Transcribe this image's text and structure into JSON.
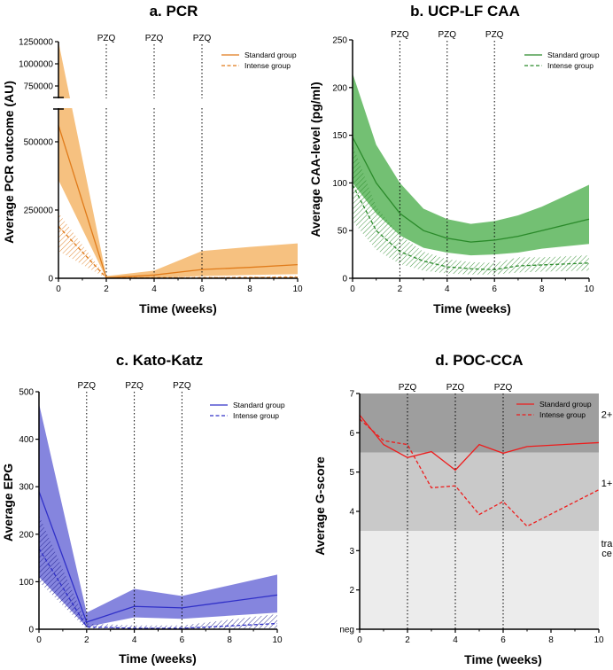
{
  "figure": {
    "colors": {
      "pcr": "#e07b1a",
      "pcr_fill": "#f5b66a",
      "caa": "#2a8a2a",
      "caa_fill": "#5ab55a",
      "kk": "#3030c8",
      "kk_fill": "#7070d8",
      "poc": "#ee1c1c",
      "axis": "#000000"
    }
  },
  "chart_data": [
    {
      "id": "pcr",
      "type": "line",
      "title": "a. PCR",
      "xlabel": "Time (weeks)",
      "ylabel": "Average PCR outcome (AU)",
      "xlim": [
        0,
        10
      ],
      "xticks": [
        "0",
        "2",
        "4",
        "6",
        "8",
        "10"
      ],
      "ylim_lower": [
        0,
        620000
      ],
      "ylim_upper": [
        620000,
        1250000
      ],
      "axis_break": true,
      "yticks": [
        {
          "v": 0,
          "label": "0"
        },
        {
          "v": 250000,
          "label": "250000"
        },
        {
          "v": 500000,
          "label": "500000"
        },
        {
          "v": 750000,
          "label": "750000"
        },
        {
          "v": 1000000,
          "label": "1000000"
        },
        {
          "v": 1250000,
          "label": "1250000"
        }
      ],
      "annotations": [
        {
          "x": 2,
          "label": "PZQ"
        },
        {
          "x": 4,
          "label": "PZQ"
        },
        {
          "x": 6,
          "label": "PZQ"
        }
      ],
      "legend": {
        "position": "top-right",
        "entries": [
          "Standard group",
          "Intense group"
        ]
      },
      "series": [
        {
          "name": "Standard group",
          "style": "solid",
          "x": [
            0,
            2,
            4,
            6,
            8,
            10
          ],
          "y": [
            560000,
            2000,
            12000,
            32000,
            40000,
            50000
          ],
          "lower": [
            360000,
            0,
            2000,
            8000,
            12000,
            15000
          ],
          "upper": [
            1250000,
            8000,
            28000,
            100000,
            115000,
            128000
          ]
        },
        {
          "name": "Intense group",
          "style": "dashed",
          "x": [
            0,
            2,
            4,
            6,
            8,
            10
          ],
          "y": [
            190000,
            2000,
            2000,
            2000,
            3000,
            4000
          ],
          "lower": [
            100000,
            0,
            0,
            0,
            0,
            0
          ],
          "upper": [
            240000,
            5000,
            5000,
            6000,
            7000,
            9000
          ]
        }
      ]
    },
    {
      "id": "caa",
      "type": "line",
      "title": "b. UCP-LF CAA",
      "xlabel": "Time (weeks)",
      "ylabel": "Average CAA-level (pg/ml)",
      "xlim": [
        0,
        10
      ],
      "ylim": [
        0,
        250
      ],
      "xticks": [
        "0",
        "2",
        "4",
        "6",
        "8",
        "10"
      ],
      "yticks": [
        "0",
        "50",
        "100",
        "150",
        "200",
        "250"
      ],
      "annotations": [
        {
          "x": 2,
          "label": "PZQ"
        },
        {
          "x": 4,
          "label": "PZQ"
        },
        {
          "x": 6,
          "label": "PZQ"
        }
      ],
      "legend": {
        "position": "top-right",
        "entries": [
          "Standard group",
          "Intense group"
        ]
      },
      "series": [
        {
          "name": "Standard group",
          "style": "solid",
          "x": [
            0,
            1,
            2,
            3,
            4,
            5,
            6,
            7,
            8,
            10
          ],
          "y": [
            148,
            100,
            68,
            50,
            42,
            38,
            40,
            44,
            50,
            62
          ],
          "lower": [
            100,
            68,
            45,
            32,
            27,
            24,
            25,
            27,
            31,
            36
          ],
          "upper": [
            215,
            140,
            100,
            73,
            62,
            57,
            60,
            66,
            75,
            98
          ]
        },
        {
          "name": "Intense group",
          "style": "dashed",
          "x": [
            0,
            1,
            2,
            3,
            4,
            5,
            6,
            7,
            8,
            10
          ],
          "y": [
            98,
            50,
            28,
            18,
            12,
            10,
            9,
            13,
            14,
            16
          ],
          "lower": [
            60,
            30,
            15,
            8,
            5,
            4,
            4,
            6,
            7,
            8
          ],
          "upper": [
            140,
            75,
            45,
            28,
            20,
            17,
            16,
            22,
            22,
            24
          ]
        }
      ]
    },
    {
      "id": "kk",
      "type": "line",
      "title": "c. Kato-Katz",
      "xlabel": "Time (weeks)",
      "ylabel": "Average EPG",
      "xlim": [
        0,
        10
      ],
      "ylim": [
        0,
        500
      ],
      "xticks": [
        "0",
        "2",
        "4",
        "6",
        "8",
        "10"
      ],
      "yticks": [
        "0",
        "100",
        "200",
        "300",
        "400",
        "500"
      ],
      "annotations": [
        {
          "x": 2,
          "label": "PZQ"
        },
        {
          "x": 4,
          "label": "PZQ"
        },
        {
          "x": 6,
          "label": "PZQ"
        }
      ],
      "legend": {
        "position": "top-right",
        "entries": [
          "Standard group",
          "Intense group"
        ]
      },
      "series": [
        {
          "name": "Standard group",
          "style": "solid",
          "x": [
            0,
            2,
            4,
            6,
            10
          ],
          "y": [
            290,
            15,
            48,
            45,
            72
          ],
          "lower": [
            110,
            5,
            25,
            22,
            35
          ],
          "upper": [
            475,
            35,
            85,
            70,
            115
          ]
        },
        {
          "name": "Intense group",
          "style": "dashed",
          "x": [
            0,
            2,
            4,
            6,
            10
          ],
          "y": [
            170,
            5,
            2,
            2,
            12
          ],
          "lower": [
            100,
            0,
            0,
            0,
            2
          ],
          "upper": [
            240,
            12,
            8,
            8,
            32
          ]
        }
      ]
    },
    {
      "id": "poc",
      "type": "line",
      "title": "d. POC-CCA",
      "xlabel": "Time (weeks)",
      "ylabel": "Average G-score",
      "xlim": [
        0,
        10
      ],
      "ylim": [
        1,
        7
      ],
      "xticks": [
        "0",
        "2",
        "4",
        "6",
        "8",
        "10"
      ],
      "yticks": [
        {
          "v": 1,
          "label": "neg"
        },
        {
          "v": 2,
          "label": "2"
        },
        {
          "v": 3,
          "label": "3"
        },
        {
          "v": 4,
          "label": "4"
        },
        {
          "v": 5,
          "label": "5"
        },
        {
          "v": 6,
          "label": "6"
        },
        {
          "v": 7,
          "label": "7"
        }
      ],
      "annotations": [
        {
          "x": 2,
          "label": "PZQ"
        },
        {
          "x": 4,
          "label": "PZQ"
        },
        {
          "x": 6,
          "label": "PZQ"
        }
      ],
      "bands": [
        {
          "from": 5.5,
          "to": 7,
          "label": "2+",
          "color": "#9e9e9e"
        },
        {
          "from": 3.5,
          "to": 5.5,
          "label": "1+",
          "color": "#c9c9c9"
        },
        {
          "from": 1,
          "to": 3.5,
          "label": "tra ce",
          "color": "#ececec"
        }
      ],
      "legend": {
        "position": "top-right",
        "entries": [
          "Standard group",
          "Intense group"
        ]
      },
      "series": [
        {
          "name": "Standard group",
          "style": "solid",
          "x": [
            0,
            1,
            2,
            3,
            4,
            5,
            6,
            7,
            10
          ],
          "y": [
            6.45,
            5.7,
            5.37,
            5.52,
            5.05,
            5.7,
            5.48,
            5.65,
            5.75
          ]
        },
        {
          "name": "Intense group",
          "style": "dashed",
          "x": [
            0,
            1,
            2,
            3,
            4,
            5,
            6,
            7,
            10
          ],
          "y": [
            6.35,
            5.8,
            5.7,
            4.6,
            4.65,
            3.92,
            4.25,
            3.62,
            4.55
          ]
        }
      ]
    }
  ]
}
